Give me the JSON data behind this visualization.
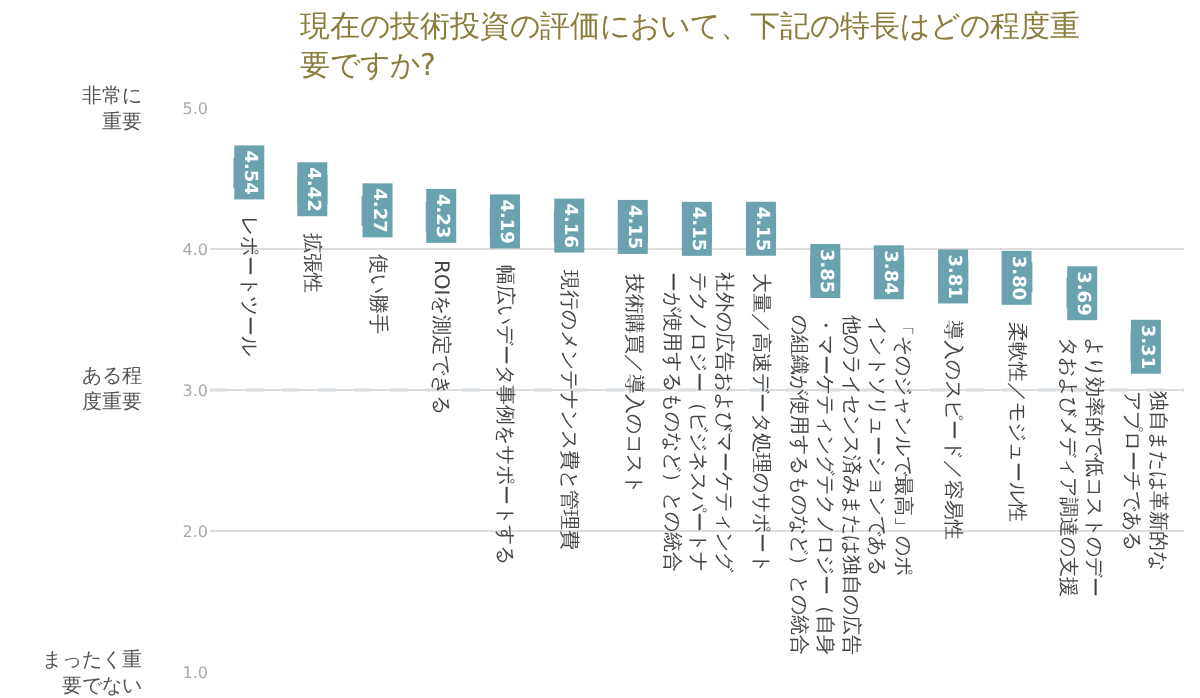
{
  "chart_data": {
    "type": "scatter",
    "title": "現在の技術投資の評価において、下記の特長はどの程度重要ですか?",
    "categories": [
      "レポートツール",
      "拡張性",
      "使い勝手",
      "ROIを測定できる",
      "幅広いデータ事例をサポートする",
      "現行のメンテナンス費と管理費",
      "技術購買／導入のコスト",
      "社外の広告およびマーケティングテクノロジー（ビジネスパートナーが使用するものなど）との統合",
      "大量／高速データ処理のサポート",
      "他のライセンス済みまたは独自の広告・マーケティングテクノロジー（自身の組織が使用するものなど）との統合",
      "「そのジャンルで最高」のポイントソリューションである",
      "導入のスピード／容易性",
      "柔軟性／モジュール性",
      "より効率的で低コストのデータおよびメディア調達の支援",
      "独自または革新的なアプローチである"
    ],
    "values": [
      4.54,
      4.42,
      4.27,
      4.23,
      4.19,
      4.16,
      4.15,
      4.15,
      4.15,
      3.85,
      3.84,
      3.81,
      3.8,
      3.69,
      3.31
    ],
    "value_labels": [
      "4.54",
      "4.42",
      "4.27",
      "4.23",
      "4.19",
      "4.16",
      "4.15",
      "4.15",
      "4.15",
      "3.85",
      "3.84",
      "3.81",
      "3.80",
      "3.69",
      "3.31"
    ],
    "color": "#6aa3ad",
    "marker": "square",
    "ylim": [
      1.0,
      5.0
    ],
    "yticks": [
      {
        "value": 1,
        "label": "1.0"
      },
      {
        "value": 2,
        "label": "2.0"
      },
      {
        "value": 3,
        "label": "3.0"
      },
      {
        "value": 4,
        "label": "4.0"
      },
      {
        "value": 5,
        "label": "5.0"
      }
    ],
    "annotations": [
      "非常に重要",
      "ある程度重要",
      "まったく重要でない"
    ],
    "grid": "y",
    "ref_lines": [
      {
        "axis": "y",
        "value": 3.0,
        "color": "#8fb8d0",
        "line_style": "dashed"
      }
    ]
  }
}
